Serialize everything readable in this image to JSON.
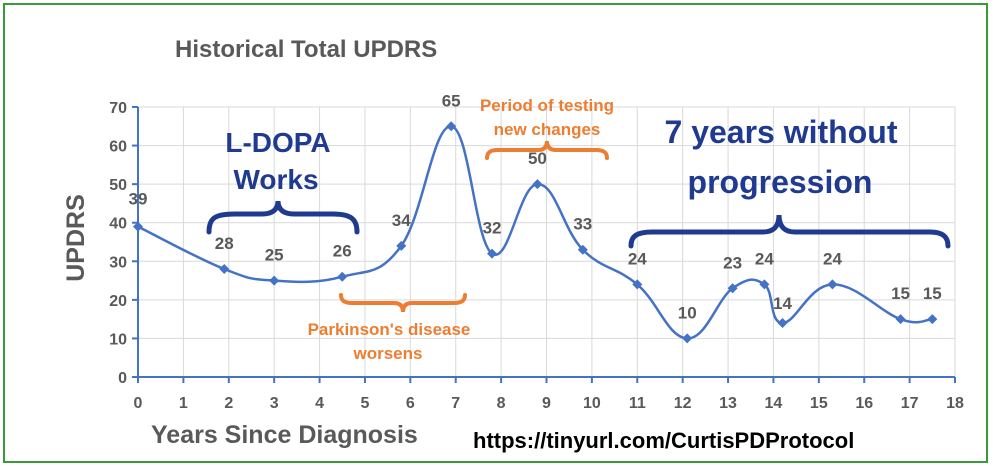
{
  "chart_data": {
    "type": "line",
    "title": "Historical Total UPDRS",
    "xlabel": "Years Since Diagnosis",
    "ylabel": "UPDRS",
    "xlim": [
      0,
      18
    ],
    "ylim": [
      0,
      70
    ],
    "x_ticks": [
      "0",
      "1",
      "2",
      "3",
      "4",
      "5",
      "6",
      "7",
      "8",
      "9",
      "10",
      "11",
      "12",
      "13",
      "14",
      "15",
      "16",
      "17",
      "18"
    ],
    "y_ticks": [
      "0",
      "10",
      "20",
      "30",
      "40",
      "50",
      "60",
      "70"
    ],
    "grid": true,
    "series": [
      {
        "x": [
          0,
          1.9,
          3.0,
          4.5,
          5.8,
          6.9,
          7.8,
          8.8,
          9.8,
          11.0,
          12.1,
          13.1,
          13.8,
          14.2,
          15.3,
          16.8,
          17.5
        ],
        "values": [
          39,
          28,
          25,
          26,
          34,
          65,
          32,
          50,
          33,
          24,
          10,
          23,
          24,
          14,
          24,
          15,
          15
        ],
        "labels": [
          "39",
          "28",
          "25",
          "26",
          "34",
          "65",
          "32",
          "50",
          "33",
          "24",
          "10",
          "23",
          "24",
          "14",
          "24",
          "15",
          "15"
        ]
      }
    ],
    "annotations": [
      {
        "lines": [
          "L-DOPA",
          "Works"
        ],
        "color": "#1f3a8f"
      },
      {
        "lines": [
          "Parkinson's disease",
          "worsens"
        ],
        "color": "#ed7d31"
      },
      {
        "lines": [
          "Period of testing",
          "new changes"
        ],
        "color": "#ed7d31"
      },
      {
        "lines": [
          "7 years without",
          "progression"
        ],
        "color": "#1f3a8f"
      }
    ],
    "footer_text": "https://tinyurl.com/CurtisPDProtocol"
  },
  "colors": {
    "series": "#4472c4",
    "frame": "#3a9a3a",
    "axis": "#4472c4",
    "grid": "#d9d9d9",
    "text": "#595959",
    "bracket_blue": "#1f3a8f",
    "bracket_orange": "#ed7d31"
  }
}
